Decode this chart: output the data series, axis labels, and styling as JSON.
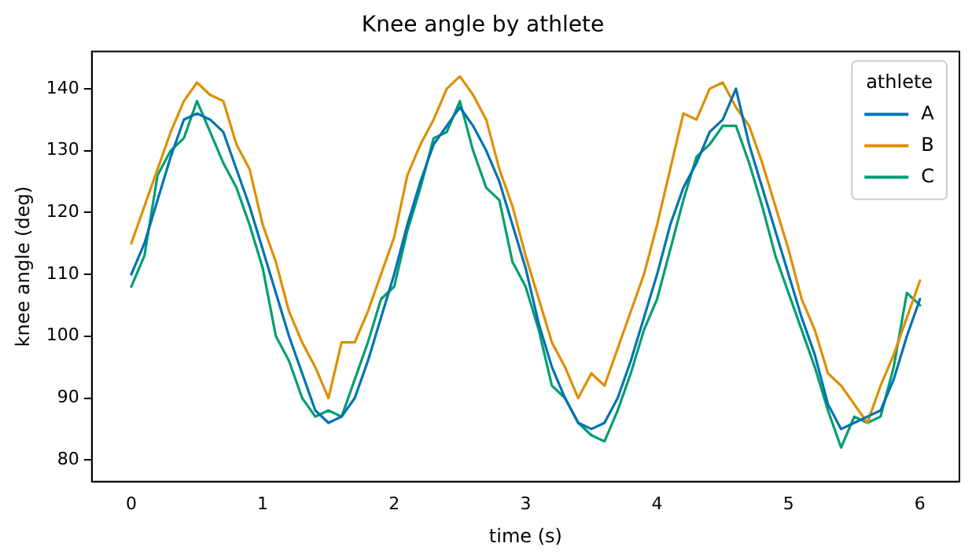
{
  "chart_data": {
    "type": "line",
    "title": "Knee angle by athlete",
    "xlabel": "time (s)",
    "ylabel": "knee angle (deg)",
    "legend_title": "athlete",
    "legend": "top right",
    "grid": false,
    "marker": "none",
    "line_style": "solid",
    "x": [
      0,
      0.1,
      0.2,
      0.3,
      0.4,
      0.5,
      0.6,
      0.7,
      0.8,
      0.9,
      1,
      1.1,
      1.2,
      1.3,
      1.4,
      1.5,
      1.6,
      1.7,
      1.8,
      1.9,
      2,
      2.1,
      2.2,
      2.3,
      2.4,
      2.5,
      2.6,
      2.7,
      2.8,
      2.9,
      3,
      3.1,
      3.2,
      3.3,
      3.4,
      3.5,
      3.6,
      3.7,
      3.8,
      3.9,
      4,
      4.1,
      4.2,
      4.3,
      4.4,
      4.5,
      4.6,
      4.7,
      4.8,
      4.9,
      5,
      5.1,
      5.2,
      5.3,
      5.4,
      5.5,
      5.6,
      5.7,
      5.8,
      5.9,
      6
    ],
    "xlim": [
      -0.3,
      6.3
    ],
    "xticks": [
      0,
      1,
      2,
      3,
      4,
      5,
      6
    ],
    "ylim": [
      76.5,
      146
    ],
    "yticks": [
      80,
      90,
      100,
      110,
      120,
      130,
      140
    ],
    "series": [
      {
        "name": "A",
        "color": "#0173b2",
        "values": [
          110,
          115,
          122,
          129,
          135,
          136,
          135,
          133,
          127,
          121,
          114,
          107,
          100,
          94,
          88,
          86,
          87,
          90,
          96,
          103,
          110,
          118,
          125,
          131,
          134,
          137,
          134,
          130,
          125,
          118,
          111,
          102,
          95,
          90,
          86,
          85,
          86,
          90,
          96,
          103,
          110,
          118,
          124,
          128,
          133,
          135,
          140,
          131,
          124,
          117,
          110,
          103,
          97,
          89,
          85,
          86,
          87,
          88,
          93,
          100,
          106
        ]
      },
      {
        "name": "B",
        "color": "#de8f05",
        "values": [
          115,
          121,
          127,
          133,
          138,
          141,
          139,
          138,
          131,
          127,
          118,
          112,
          104,
          99,
          95,
          90,
          99,
          99,
          104,
          110,
          116,
          126,
          131,
          135,
          140,
          142,
          139,
          135,
          127,
          121,
          113,
          106,
          99,
          95,
          90,
          94,
          92,
          98,
          104,
          110,
          118,
          127,
          136,
          135,
          140,
          141,
          137,
          134,
          128,
          121,
          114,
          106,
          101,
          94,
          92,
          89,
          86,
          92,
          97,
          103,
          109
        ]
      },
      {
        "name": "C",
        "color": "#029e73",
        "values": [
          108,
          113,
          126,
          130,
          132,
          138,
          133,
          128,
          124,
          118,
          111,
          100,
          96,
          90,
          87,
          88,
          87,
          93,
          99,
          106,
          108,
          117,
          124,
          132,
          133,
          138,
          130,
          124,
          122,
          112,
          108,
          101,
          92,
          90,
          86,
          84,
          83,
          88,
          94,
          101,
          106,
          114,
          122,
          129,
          131,
          134,
          134,
          128,
          121,
          113,
          107,
          101,
          95,
          88,
          82,
          87,
          86,
          87,
          95,
          107,
          105
        ]
      }
    ]
  }
}
